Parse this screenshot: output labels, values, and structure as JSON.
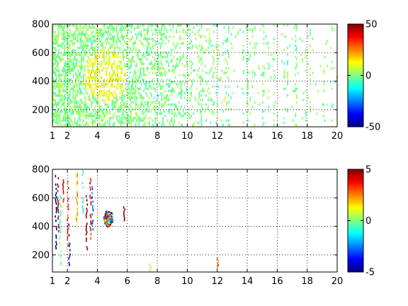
{
  "chart_data": [
    {
      "type": "heatmap",
      "title": "",
      "xlabel": "",
      "ylabel": "",
      "xlim": [
        1,
        20
      ],
      "ylim": [
        80,
        800
      ],
      "x_ticks": [
        {
          "value": 1,
          "label": "1"
        },
        {
          "value": 2,
          "label": "2"
        },
        {
          "value": 4,
          "label": "4"
        },
        {
          "value": 6,
          "label": "6"
        },
        {
          "value": 8,
          "label": "8"
        },
        {
          "value": 10,
          "label": "10"
        },
        {
          "value": 12,
          "label": "12"
        },
        {
          "value": 14,
          "label": "14"
        },
        {
          "value": 16,
          "label": "16"
        },
        {
          "value": 18,
          "label": "18"
        },
        {
          "value": 20,
          "label": "20"
        }
      ],
      "y_ticks": [
        {
          "value": 200,
          "label": "200"
        },
        {
          "value": 400,
          "label": "400"
        },
        {
          "value": 600,
          "label": "600"
        },
        {
          "value": 800,
          "label": "800"
        }
      ],
      "grid": true,
      "colormap": "jet",
      "clim": [
        -50,
        50
      ],
      "colorbar_ticks": [
        {
          "value": 50,
          "label": "50"
        },
        {
          "value": 0,
          "label": "0"
        },
        {
          "value": -50,
          "label": "-50"
        }
      ],
      "blobs": [
        {
          "x": 4.5,
          "y": 450,
          "value": 4
        },
        {
          "x": 5.3,
          "y": 560,
          "value": 6
        },
        {
          "x": 3.8,
          "y": 300,
          "value": -3
        },
        {
          "x": 12,
          "y": 400,
          "value": 8
        },
        {
          "x": 2.5,
          "y": 600,
          "value": -4
        }
      ]
    },
    {
      "type": "heatmap",
      "title": "",
      "xlabel": "",
      "ylabel": "",
      "xlim": [
        1,
        20
      ],
      "ylim": [
        80,
        800
      ],
      "x_ticks": [
        {
          "value": 1,
          "label": "1"
        },
        {
          "value": 2,
          "label": "2"
        },
        {
          "value": 4,
          "label": "4"
        },
        {
          "value": 6,
          "label": "6"
        },
        {
          "value": 8,
          "label": "8"
        },
        {
          "value": 10,
          "label": "10"
        },
        {
          "value": 12,
          "label": "12"
        },
        {
          "value": 14,
          "label": "14"
        },
        {
          "value": 16,
          "label": "16"
        },
        {
          "value": 18,
          "label": "18"
        },
        {
          "value": 20,
          "label": "20"
        }
      ],
      "y_ticks": [
        {
          "value": 200,
          "label": "200"
        },
        {
          "value": 400,
          "label": "400"
        },
        {
          "value": 600,
          "label": "600"
        },
        {
          "value": 800,
          "label": "800"
        }
      ],
      "grid": true,
      "colormap": "jet",
      "clim": [
        -5,
        5
      ],
      "colorbar_ticks": [
        {
          "value": 5,
          "label": "5"
        },
        {
          "value": 0,
          "label": "0"
        },
        {
          "value": -5,
          "label": "-5"
        }
      ],
      "streaks": [
        {
          "x": 1.2,
          "y0": 230,
          "y1": 760,
          "value": -5
        },
        {
          "x": 1.35,
          "y0": 350,
          "y1": 760,
          "value": 5
        },
        {
          "x": 1.5,
          "y0": 120,
          "y1": 620,
          "value": 0
        },
        {
          "x": 1.7,
          "y0": 560,
          "y1": 730,
          "value": 4
        },
        {
          "x": 2.0,
          "y0": 250,
          "y1": 720,
          "value": 3
        },
        {
          "x": 2.1,
          "y0": 110,
          "y1": 420,
          "value": -4
        },
        {
          "x": 2.6,
          "y0": 390,
          "y1": 800,
          "value": 2
        },
        {
          "x": 3.0,
          "y0": 500,
          "y1": 800,
          "value": -1
        },
        {
          "x": 3.25,
          "y0": 230,
          "y1": 620,
          "value": 5
        },
        {
          "x": 3.5,
          "y0": 320,
          "y1": 740,
          "value": 4
        },
        {
          "x": 3.65,
          "y0": 380,
          "y1": 700,
          "value": -3
        },
        {
          "x": 5.75,
          "y0": 440,
          "y1": 540,
          "value": 5
        },
        {
          "x": 12.0,
          "y0": 120,
          "y1": 180,
          "value": 3
        },
        {
          "x": 7.5,
          "y0": 90,
          "y1": 140,
          "value": 0
        }
      ],
      "clusters": [
        {
          "x": 4.7,
          "y": 460,
          "spread_x": 0.3,
          "spread_y": 60
        }
      ]
    }
  ]
}
